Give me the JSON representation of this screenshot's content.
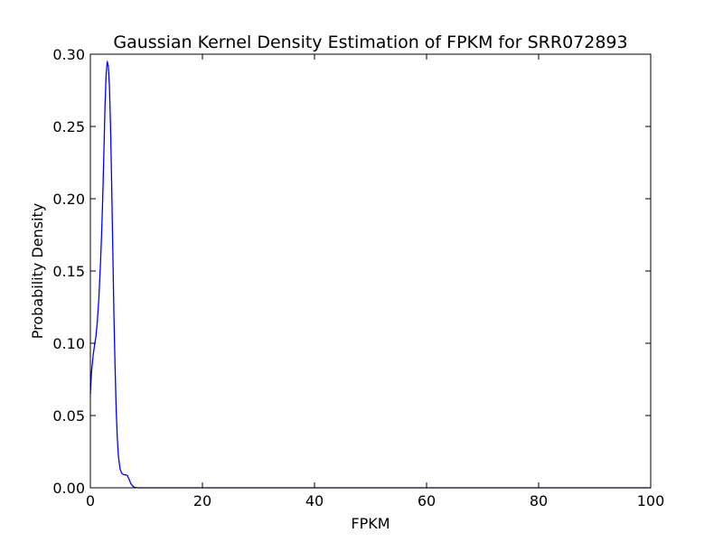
{
  "chart_data": {
    "type": "line",
    "title": "Gaussian Kernel Density Estimation of FPKM for SRR072893",
    "xlabel": "FPKM",
    "ylabel": "Probability Density",
    "xlim": [
      0,
      100
    ],
    "ylim": [
      0,
      0.3
    ],
    "xticks": [
      0,
      20,
      40,
      60,
      80,
      100
    ],
    "xtick_labels": [
      "0",
      "20",
      "40",
      "60",
      "80",
      "100"
    ],
    "yticks": [
      0,
      0.05,
      0.1,
      0.15,
      0.2,
      0.25,
      0.3
    ],
    "ytick_labels": [
      "0.00",
      "0.05",
      "0.10",
      "0.15",
      "0.20",
      "0.25",
      "0.30"
    ],
    "grid": false,
    "series": [
      {
        "color": "#0000ff",
        "x": [
          0,
          0.2,
          0.5,
          0.8,
          1.0,
          1.2,
          1.5,
          1.8,
          2.0,
          2.2,
          2.4,
          2.6,
          2.8,
          3.0,
          3.2,
          3.4,
          3.6,
          3.8,
          4.0,
          4.2,
          4.4,
          4.6,
          4.8,
          5.0,
          5.3,
          5.6,
          6.0,
          6.3,
          6.6,
          6.9,
          7.2,
          7.5,
          7.8,
          8.0,
          8.3,
          8.6,
          9.0,
          10,
          20,
          40,
          60,
          80,
          100
        ],
        "y": [
          0.065,
          0.08,
          0.092,
          0.1,
          0.105,
          0.113,
          0.13,
          0.155,
          0.175,
          0.2,
          0.23,
          0.262,
          0.285,
          0.295,
          0.292,
          0.278,
          0.25,
          0.21,
          0.165,
          0.12,
          0.085,
          0.055,
          0.035,
          0.022,
          0.013,
          0.01,
          0.009,
          0.009,
          0.0085,
          0.006,
          0.003,
          0.0015,
          0.0005,
          0.0002,
          0.0001,
          0.0,
          0.0,
          0.0,
          0.0,
          0.0,
          0.0,
          0.0,
          0.0
        ]
      }
    ]
  }
}
